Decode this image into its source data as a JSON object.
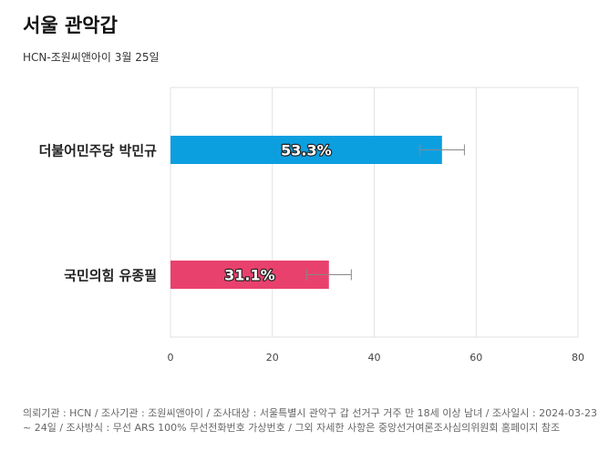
{
  "header": {
    "title": "서울 관악갑",
    "subtitle": "HCN-조원씨앤아이 3월 25일"
  },
  "footnote": "의뢰기관 : HCN / 조사기관 : 조원씨앤아이 / 조사대상 : 서울특별시 관악구 갑 선거구 거주 만 18세 이상 남녀 / 조사일시 : 2024-03-23 ~ 24일 / 조사방식 : 무선 ARS 100% 무선전화번호 가상번호 / 그외 자세한 사항은 중앙선거여론조사심의위원회 홈페이지 참조",
  "colors": {
    "bar_1": "#0c9fe0",
    "bar_2": "#e8416d",
    "grid": "#e2e2e2",
    "error_bar": "#888888"
  },
  "chart_data": {
    "type": "bar",
    "orientation": "horizontal",
    "categories": [
      "더불어민주당 박민규",
      "국민의힘 유종필"
    ],
    "values": [
      53.3,
      31.1
    ],
    "data_labels": [
      "53.3%",
      "31.1%"
    ],
    "error_margin": [
      4.4,
      4.4
    ],
    "xlim": [
      0,
      80
    ],
    "xticks": [
      "0",
      "20",
      "40",
      "60",
      "80"
    ],
    "grid": true,
    "legend": "none"
  }
}
